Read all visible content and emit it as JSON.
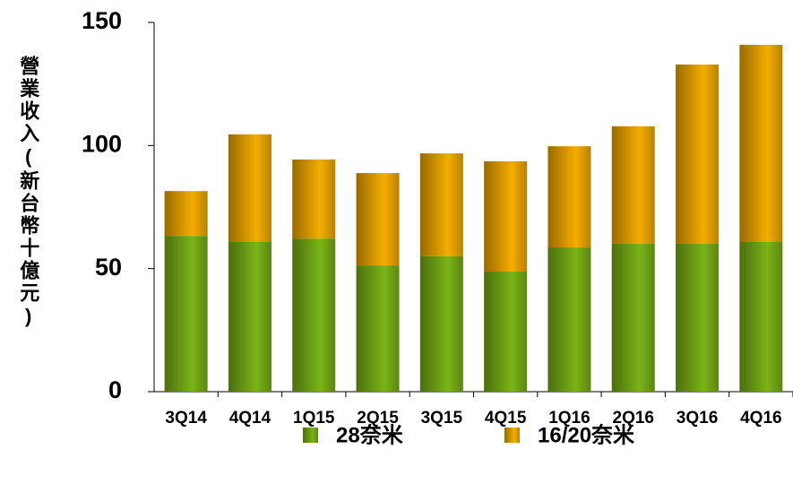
{
  "chart_data": {
    "type": "stacked_bar",
    "y_label": "營業收入(新台幣十億元)",
    "categories": [
      "3Q14",
      "4Q14",
      "1Q15",
      "2Q15",
      "3Q15",
      "4Q15",
      "1Q16",
      "2Q16",
      "3Q16",
      "4Q16"
    ],
    "series": [
      {
        "name": "28奈米",
        "color": "#7ab317",
        "values": [
          63.3,
          60.8,
          62.2,
          51.3,
          55.0,
          48.8,
          58.6,
          60.1,
          60.1,
          60.8
        ]
      },
      {
        "name": "16/20奈米",
        "color": "#f5ad00",
        "values": [
          18.2,
          43.7,
          32.1,
          37.5,
          41.8,
          44.8,
          41.1,
          47.7,
          72.8,
          80.1
        ]
      }
    ],
    "ylim": [
      0,
      150
    ],
    "yticks": [
      0,
      50,
      100,
      150
    ],
    "grid": false,
    "legend": "bottom"
  }
}
